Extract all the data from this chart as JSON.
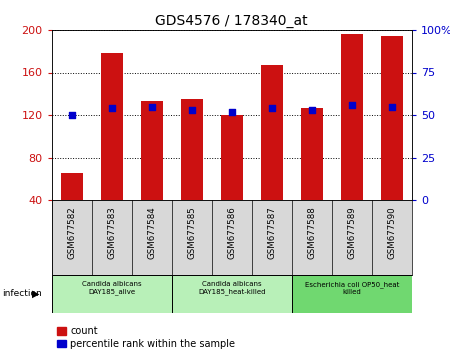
{
  "title": "GDS4576 / 178340_at",
  "samples": [
    "GSM677582",
    "GSM677583",
    "GSM677584",
    "GSM677585",
    "GSM677586",
    "GSM677587",
    "GSM677588",
    "GSM677589",
    "GSM677590"
  ],
  "counts": [
    65,
    178,
    133,
    135,
    120,
    167,
    127,
    196,
    194
  ],
  "percentile_ranks": [
    50,
    54,
    55,
    53,
    52,
    54,
    53,
    56,
    55
  ],
  "bar_color": "#cc1111",
  "dot_color": "#0000cc",
  "ylim_left": [
    40,
    200
  ],
  "ylim_right": [
    0,
    100
  ],
  "yticks_left": [
    40,
    80,
    120,
    160,
    200
  ],
  "yticks_right": [
    0,
    25,
    50,
    75,
    100
  ],
  "ytick_labels_right": [
    "0",
    "25",
    "50",
    "75",
    "100%"
  ],
  "grid_color": "black",
  "groups": [
    {
      "label": "Candida albicans\nDAY185_alive",
      "start": 0,
      "end": 3,
      "color": "#b8f0b8"
    },
    {
      "label": "Candida albicans\nDAY185_heat-killed",
      "start": 3,
      "end": 6,
      "color": "#b8f0b8"
    },
    {
      "label": "Escherichia coli OP50_heat\nkilled",
      "start": 6,
      "end": 9,
      "color": "#70d870"
    }
  ],
  "infection_label": "infection",
  "legend_count_label": "count",
  "legend_percentile_label": "percentile rank within the sample",
  "background_color": "#d8d8d8",
  "plot_bg_color": "#ffffff"
}
